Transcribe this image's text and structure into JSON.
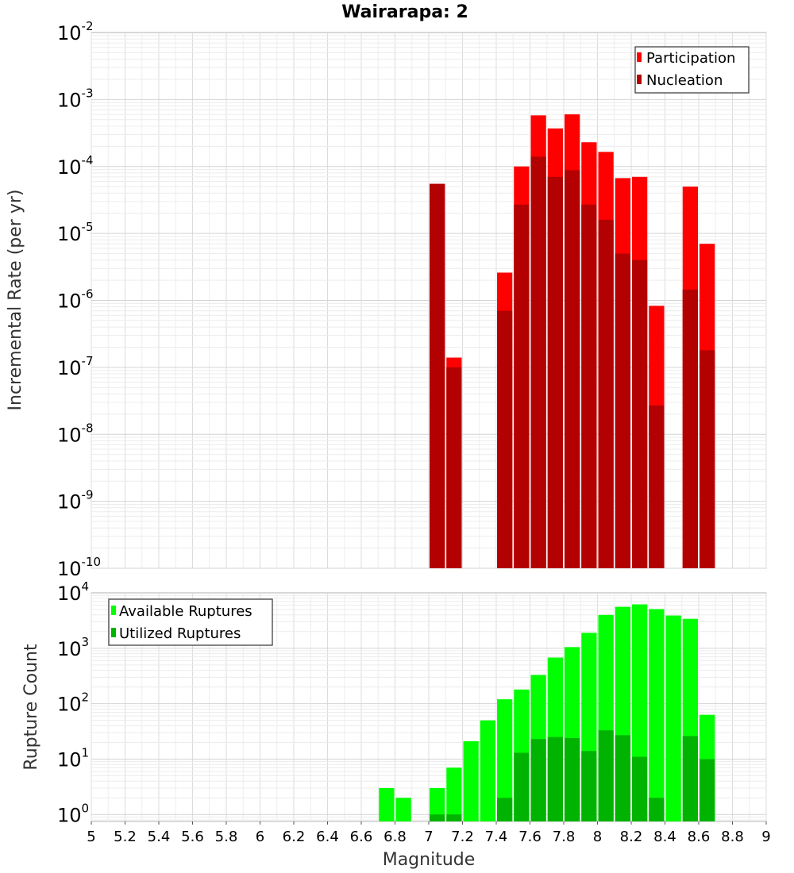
{
  "chart_data": [
    {
      "type": "bar",
      "panel": "top",
      "title": "Wairarapa: 2",
      "xlabel": "",
      "ylabel": "Incremental Rate (per yr)",
      "yscale": "log",
      "ylim": [
        1e-10,
        0.01
      ],
      "xlim": [
        5,
        9
      ],
      "y_ticks": [
        {
          "base": "10",
          "exp": "-10",
          "value": 1e-10
        },
        {
          "base": "10",
          "exp": "-9",
          "value": 1e-09
        },
        {
          "base": "10",
          "exp": "-8",
          "value": 1e-08
        },
        {
          "base": "10",
          "exp": "-7",
          "value": 1e-07
        },
        {
          "base": "10",
          "exp": "-6",
          "value": 1e-06
        },
        {
          "base": "10",
          "exp": "-5",
          "value": 1e-05
        },
        {
          "base": "10",
          "exp": "-4",
          "value": 0.0001
        },
        {
          "base": "10",
          "exp": "-3",
          "value": 0.001
        },
        {
          "base": "10",
          "exp": "-2",
          "value": 0.01
        }
      ],
      "bin_width": 0.1,
      "legend": {
        "position": "top-right",
        "entries": [
          "Participation",
          "Nucleation"
        ]
      },
      "series": [
        {
          "name": "Participation",
          "color": "#ff0000",
          "x": [
            7.05,
            7.15,
            7.45,
            7.55,
            7.65,
            7.75,
            7.85,
            7.95,
            8.05,
            8.15,
            8.25,
            8.35,
            8.55,
            8.65
          ],
          "values": [
            5.5e-05,
            1.4e-07,
            2.6e-06,
            0.0001,
            0.00058,
            0.00037,
            0.0006,
            0.00023,
            0.000165,
            6.7e-05,
            7e-05,
            8.3e-07,
            5e-05,
            7e-06
          ]
        },
        {
          "name": "Nucleation",
          "color": "#b30000",
          "x": [
            7.05,
            7.15,
            7.45,
            7.55,
            7.65,
            7.75,
            7.85,
            7.95,
            8.05,
            8.15,
            8.25,
            8.35,
            8.55,
            8.65
          ],
          "values": [
            5.5e-05,
            1e-07,
            7e-07,
            2.7e-05,
            0.00014,
            7e-05,
            8.8e-05,
            2.7e-05,
            1.6e-05,
            5e-06,
            4e-06,
            2.7e-08,
            1.45e-06,
            1.8e-07
          ]
        }
      ]
    },
    {
      "type": "bar",
      "panel": "bottom",
      "title": "",
      "xlabel": "Magnitude",
      "ylabel": "Rupture Count",
      "yscale": "log",
      "ylim": [
        0.75,
        10000
      ],
      "xlim": [
        5,
        9
      ],
      "y_ticks": [
        {
          "base": "10",
          "exp": "0",
          "value": 1
        },
        {
          "base": "10",
          "exp": "1",
          "value": 10
        },
        {
          "base": "10",
          "exp": "2",
          "value": 100
        },
        {
          "base": "10",
          "exp": "3",
          "value": 1000
        },
        {
          "base": "10",
          "exp": "4",
          "value": 10000
        }
      ],
      "x_ticks": [
        "5",
        "5.2",
        "5.4",
        "5.6",
        "5.8",
        "6",
        "6.2",
        "6.4",
        "6.6",
        "6.8",
        "7",
        "7.2",
        "7.4",
        "7.6",
        "7.8",
        "8",
        "8.2",
        "8.4",
        "8.6",
        "8.8",
        "9"
      ],
      "bin_width": 0.1,
      "legend": {
        "position": "top-left",
        "entries": [
          "Available Ruptures",
          "Utilized Ruptures"
        ]
      },
      "series": [
        {
          "name": "Available Ruptures",
          "color": "#00ff00",
          "x": [
            6.75,
            6.85,
            7.05,
            7.15,
            7.25,
            7.35,
            7.45,
            7.55,
            7.65,
            7.75,
            7.85,
            7.95,
            8.05,
            8.15,
            8.25,
            8.35,
            8.45,
            8.55,
            8.65
          ],
          "values": [
            3,
            2,
            3,
            7,
            21,
            50,
            120,
            180,
            330,
            680,
            1050,
            1900,
            4000,
            5600,
            6200,
            5100,
            3900,
            3400,
            63
          ]
        },
        {
          "name": "Utilized Ruptures",
          "color": "#00b300",
          "x": [
            7.05,
            7.15,
            7.45,
            7.55,
            7.65,
            7.75,
            7.85,
            7.95,
            8.05,
            8.15,
            8.25,
            8.35,
            8.55,
            8.65
          ],
          "values": [
            1,
            1,
            2,
            13,
            23,
            25,
            24,
            14,
            33,
            27,
            11,
            2,
            26,
            10
          ]
        }
      ]
    }
  ]
}
